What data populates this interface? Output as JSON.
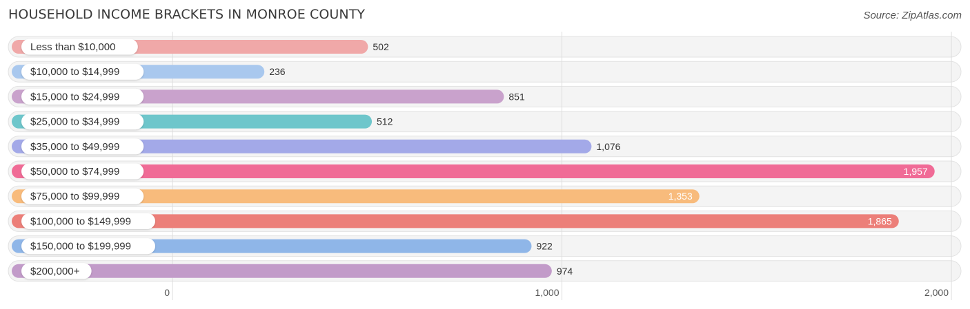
{
  "title": "HOUSEHOLD INCOME BRACKETS IN MONROE COUNTY",
  "source": "Source: ZipAtlas.com",
  "chart_data": {
    "type": "bar",
    "orientation": "horizontal",
    "title": "HOUSEHOLD INCOME BRACKETS IN MONROE COUNTY",
    "categories": [
      "Less than $10,000",
      "$10,000 to $14,999",
      "$15,000 to $24,999",
      "$25,000 to $34,999",
      "$35,000 to $49,999",
      "$50,000 to $74,999",
      "$75,000 to $99,999",
      "$100,000 to $149,999",
      "$150,000 to $199,999",
      "$200,000+"
    ],
    "values": [
      502,
      236,
      851,
      512,
      1076,
      1957,
      1353,
      1865,
      922,
      974
    ],
    "value_labels": [
      "502",
      "236",
      "851",
      "512",
      "1,076",
      "1,957",
      "1,353",
      "1,865",
      "922",
      "974"
    ],
    "colors": [
      "#f0a8a8",
      "#a9c8ee",
      "#c9a2cc",
      "#6ec6cb",
      "#a3a9e8",
      "#f06b96",
      "#f8bb7c",
      "#ec7f79",
      "#8fb6e8",
      "#c29bc9"
    ],
    "xlim": [
      0,
      2000
    ],
    "xticks": [
      0,
      1000,
      2000
    ],
    "xtick_labels": [
      "0",
      "1,000",
      "2,000"
    ],
    "grid": true
  }
}
